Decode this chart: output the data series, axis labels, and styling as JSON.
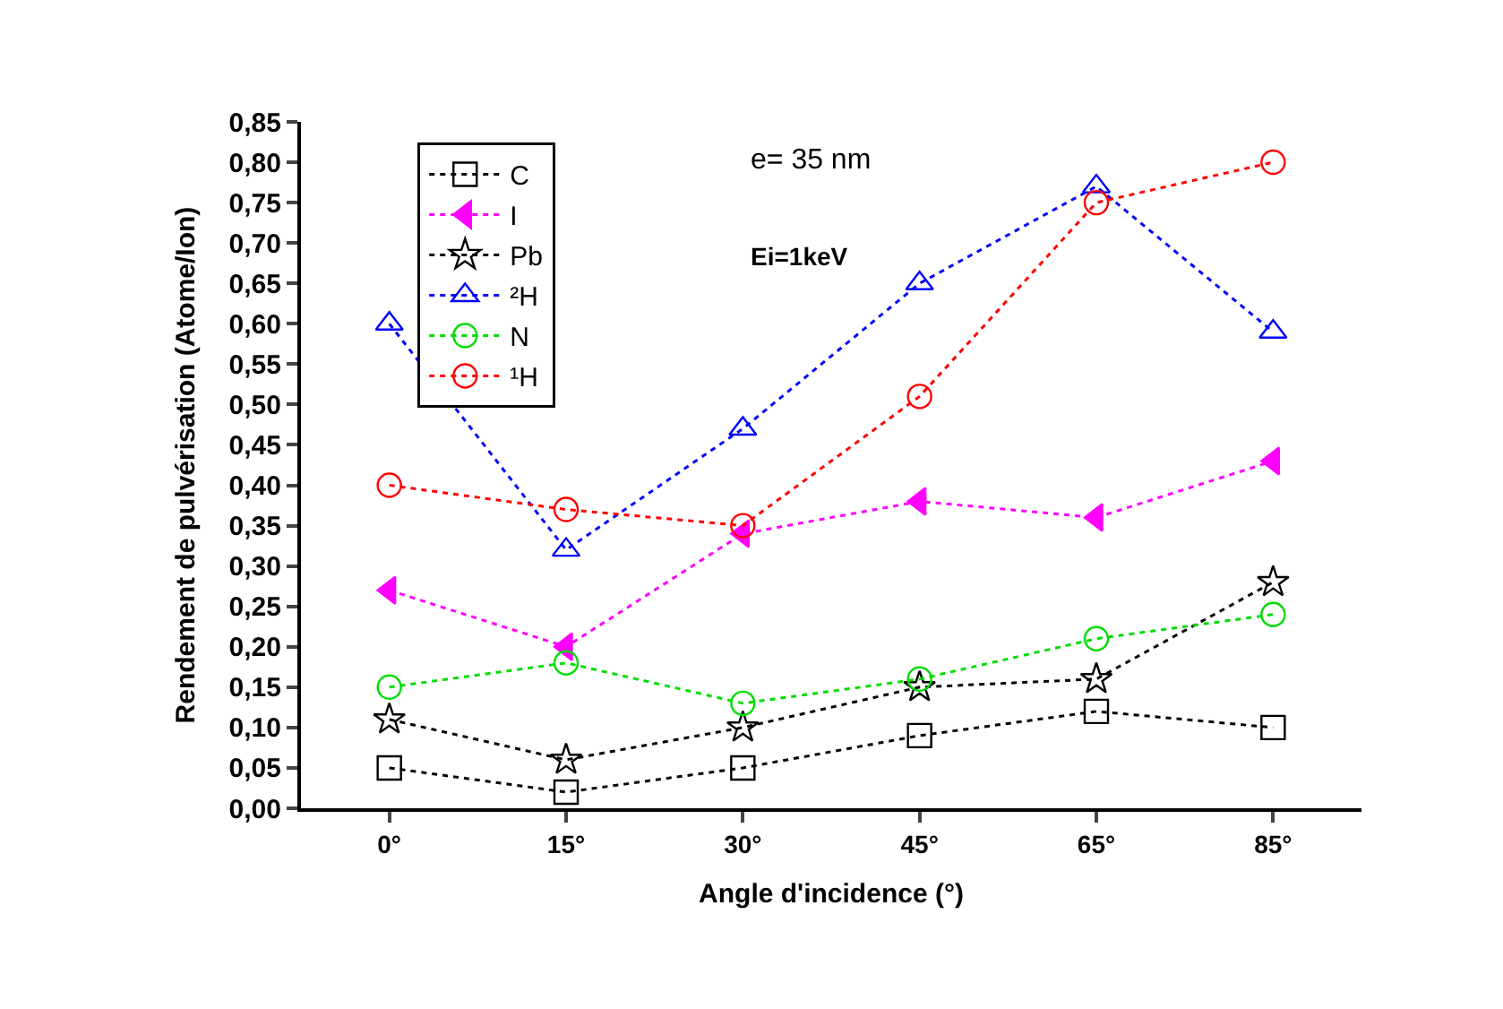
{
  "chart_data": {
    "type": "line",
    "xlabel": "Angle d'incidence (°)",
    "ylabel": "Rendement de pulvérisation (Atome/Ion)",
    "categories": [
      "0°",
      "15°",
      "30°",
      "45°",
      "65°",
      "85°"
    ],
    "series": [
      {
        "name": "C",
        "color": "#000000",
        "marker": "square",
        "values": [
          0.05,
          0.02,
          0.05,
          0.09,
          0.12,
          0.1
        ]
      },
      {
        "name": "I",
        "color": "#ff00ff",
        "marker": "triangle-left",
        "values": [
          0.27,
          0.2,
          0.34,
          0.38,
          0.36,
          0.43
        ]
      },
      {
        "name": "Pb",
        "color": "#000000",
        "marker": "star",
        "values": [
          0.11,
          0.06,
          0.1,
          0.15,
          0.16,
          0.28
        ]
      },
      {
        "name": "²H",
        "color": "#0000ff",
        "marker": "triangle",
        "values": [
          0.6,
          0.32,
          0.47,
          0.65,
          0.77,
          0.59
        ]
      },
      {
        "name": "N",
        "color": "#00dd00",
        "marker": "circle",
        "values": [
          0.15,
          0.18,
          0.13,
          0.16,
          0.21,
          0.24
        ]
      },
      {
        "name": "¹H",
        "color": "#ff0000",
        "marker": "circle",
        "values": [
          0.4,
          0.37,
          0.35,
          0.51,
          0.75,
          0.8
        ]
      }
    ],
    "ylim": [
      0,
      0.85
    ],
    "yticks": [
      {
        "value": 0,
        "label": "0,00"
      },
      {
        "value": 0.05,
        "label": "0,05"
      },
      {
        "value": 0.1,
        "label": "0,10"
      },
      {
        "value": 0.15,
        "label": "0,15"
      },
      {
        "value": 0.2,
        "label": "0,20"
      },
      {
        "value": 0.25,
        "label": "0,25"
      },
      {
        "value": 0.3,
        "label": "0,30"
      },
      {
        "value": 0.35,
        "label": "0,35"
      },
      {
        "value": 0.4,
        "label": "0,40"
      },
      {
        "value": 0.45,
        "label": "0,45"
      },
      {
        "value": 0.5,
        "label": "0,50"
      },
      {
        "value": 0.55,
        "label": "0,55"
      },
      {
        "value": 0.6,
        "label": "0,60"
      },
      {
        "value": 0.65,
        "label": "0,65"
      },
      {
        "value": 0.7,
        "label": "0,70"
      },
      {
        "value": 0.75,
        "label": "0,75"
      },
      {
        "value": 0.8,
        "label": "0,80"
      },
      {
        "value": 0.85,
        "label": "0,85"
      }
    ],
    "annotations": [
      "e= 35 nm",
      "Ei=1keV"
    ],
    "line_style": "dotted",
    "legend": "top left"
  }
}
